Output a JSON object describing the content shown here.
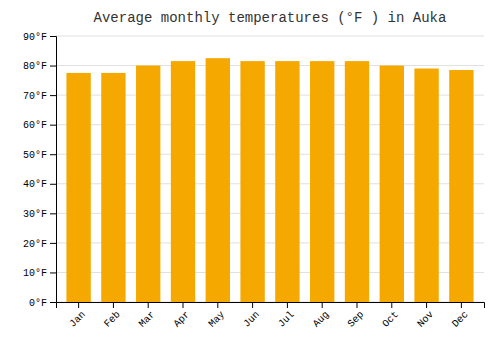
{
  "chart_data": {
    "type": "bar",
    "title": "Average monthly temperatures (°F ) in Auka",
    "categories": [
      "Jan",
      "Feb",
      "Mar",
      "Apr",
      "May",
      "Jun",
      "Jul",
      "Aug",
      "Sep",
      "Oct",
      "Nov",
      "Dec"
    ],
    "values": [
      77.5,
      77.5,
      80.0,
      81.5,
      82.5,
      81.5,
      81.5,
      81.5,
      81.5,
      80.0,
      79.0,
      78.5
    ],
    "color": "#F5A800",
    "ylim": [
      0,
      90
    ],
    "yticks": [
      {
        "value": 0,
        "label": "0°F"
      },
      {
        "value": 10,
        "label": "10°F"
      },
      {
        "value": 20,
        "label": "20°F"
      },
      {
        "value": 30,
        "label": "30°F"
      },
      {
        "value": 40,
        "label": "40°F"
      },
      {
        "value": 50,
        "label": "50°F"
      },
      {
        "value": 60,
        "label": "60°F"
      },
      {
        "value": 70,
        "label": "70°F"
      },
      {
        "value": 80,
        "label": "80°F"
      },
      {
        "value": 90,
        "label": "90°F"
      }
    ],
    "grid": true
  }
}
